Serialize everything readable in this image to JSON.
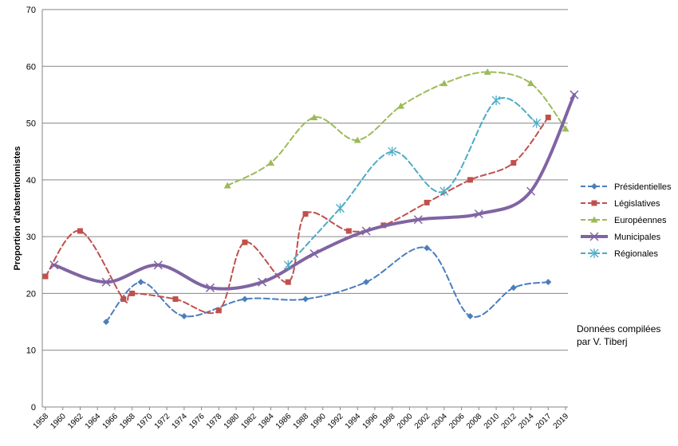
{
  "chart_data": {
    "type": "line",
    "ylabel": "Proportion d'abstentionnistes",
    "ylim": [
      0,
      70
    ],
    "yticks": [
      0,
      10,
      20,
      30,
      40,
      50,
      60,
      70
    ],
    "x_categories": [
      "1958",
      "1960",
      "1962",
      "1964",
      "1966",
      "1968",
      "1970",
      "1972",
      "1974",
      "1976",
      "1978",
      "1980",
      "1982",
      "1984",
      "1986",
      "1988",
      "1990",
      "1992",
      "1994",
      "1996",
      "1998",
      "2000",
      "2002",
      "2004",
      "2006",
      "2008",
      "2010",
      "2012",
      "2014",
      "2017",
      "2019"
    ],
    "grid": true,
    "legend_position": "right",
    "series": [
      {
        "name": "Présidentielles",
        "color": "#4a7ebb",
        "marker": "diamond",
        "dash": true,
        "width": 2,
        "points": [
          [
            "1965",
            15
          ],
          [
            "1969",
            22
          ],
          [
            "1974",
            16
          ],
          [
            "1981",
            19
          ],
          [
            "1988",
            19
          ],
          [
            "1995",
            22
          ],
          [
            "2002",
            28
          ],
          [
            "2007",
            16
          ],
          [
            "2012",
            21
          ],
          [
            "2017",
            22
          ]
        ]
      },
      {
        "name": "Législatives",
        "color": "#c0504d",
        "marker": "square",
        "dash": true,
        "width": 2,
        "points": [
          [
            "1958",
            23
          ],
          [
            "1962",
            31
          ],
          [
            "1967",
            19
          ],
          [
            "1968",
            20
          ],
          [
            "1973",
            19
          ],
          [
            "1978",
            17
          ],
          [
            "1981",
            29
          ],
          [
            "1986",
            22
          ],
          [
            "1988",
            34
          ],
          [
            "1993",
            31
          ],
          [
            "1997",
            32
          ],
          [
            "2002",
            36
          ],
          [
            "2007",
            40
          ],
          [
            "2012",
            43
          ],
          [
            "2017",
            51
          ]
        ]
      },
      {
        "name": "Européennes",
        "color": "#9bbb59",
        "marker": "triangle",
        "dash": true,
        "width": 2,
        "points": [
          [
            "1979",
            39
          ],
          [
            "1984",
            43
          ],
          [
            "1989",
            51
          ],
          [
            "1994",
            47
          ],
          [
            "1999",
            53
          ],
          [
            "2004",
            57
          ],
          [
            "2009",
            59
          ],
          [
            "2014",
            57
          ],
          [
            "2019",
            49
          ]
        ]
      },
      {
        "name": "Municipales",
        "color": "#8064a2",
        "marker": "x",
        "dash": false,
        "width": 4,
        "points": [
          [
            "1959",
            25
          ],
          [
            "1965",
            22
          ],
          [
            "1971",
            25
          ],
          [
            "1977",
            21
          ],
          [
            "1983",
            22
          ],
          [
            "1989",
            27
          ],
          [
            "1995",
            31
          ],
          [
            "2001",
            33
          ],
          [
            "2008",
            34
          ],
          [
            "2014",
            38
          ],
          [
            "2020",
            55
          ]
        ]
      },
      {
        "name": "Régionales",
        "color": "#4bacc6",
        "marker": "star",
        "dash": true,
        "width": 2,
        "points": [
          [
            "1986",
            25
          ],
          [
            "1992",
            35
          ],
          [
            "1998",
            45
          ],
          [
            "2004",
            38
          ],
          [
            "2010",
            54
          ],
          [
            "2015",
            50
          ]
        ]
      }
    ]
  },
  "note": {
    "line1": "Données compilées",
    "line2": "par V. Tiberj"
  }
}
